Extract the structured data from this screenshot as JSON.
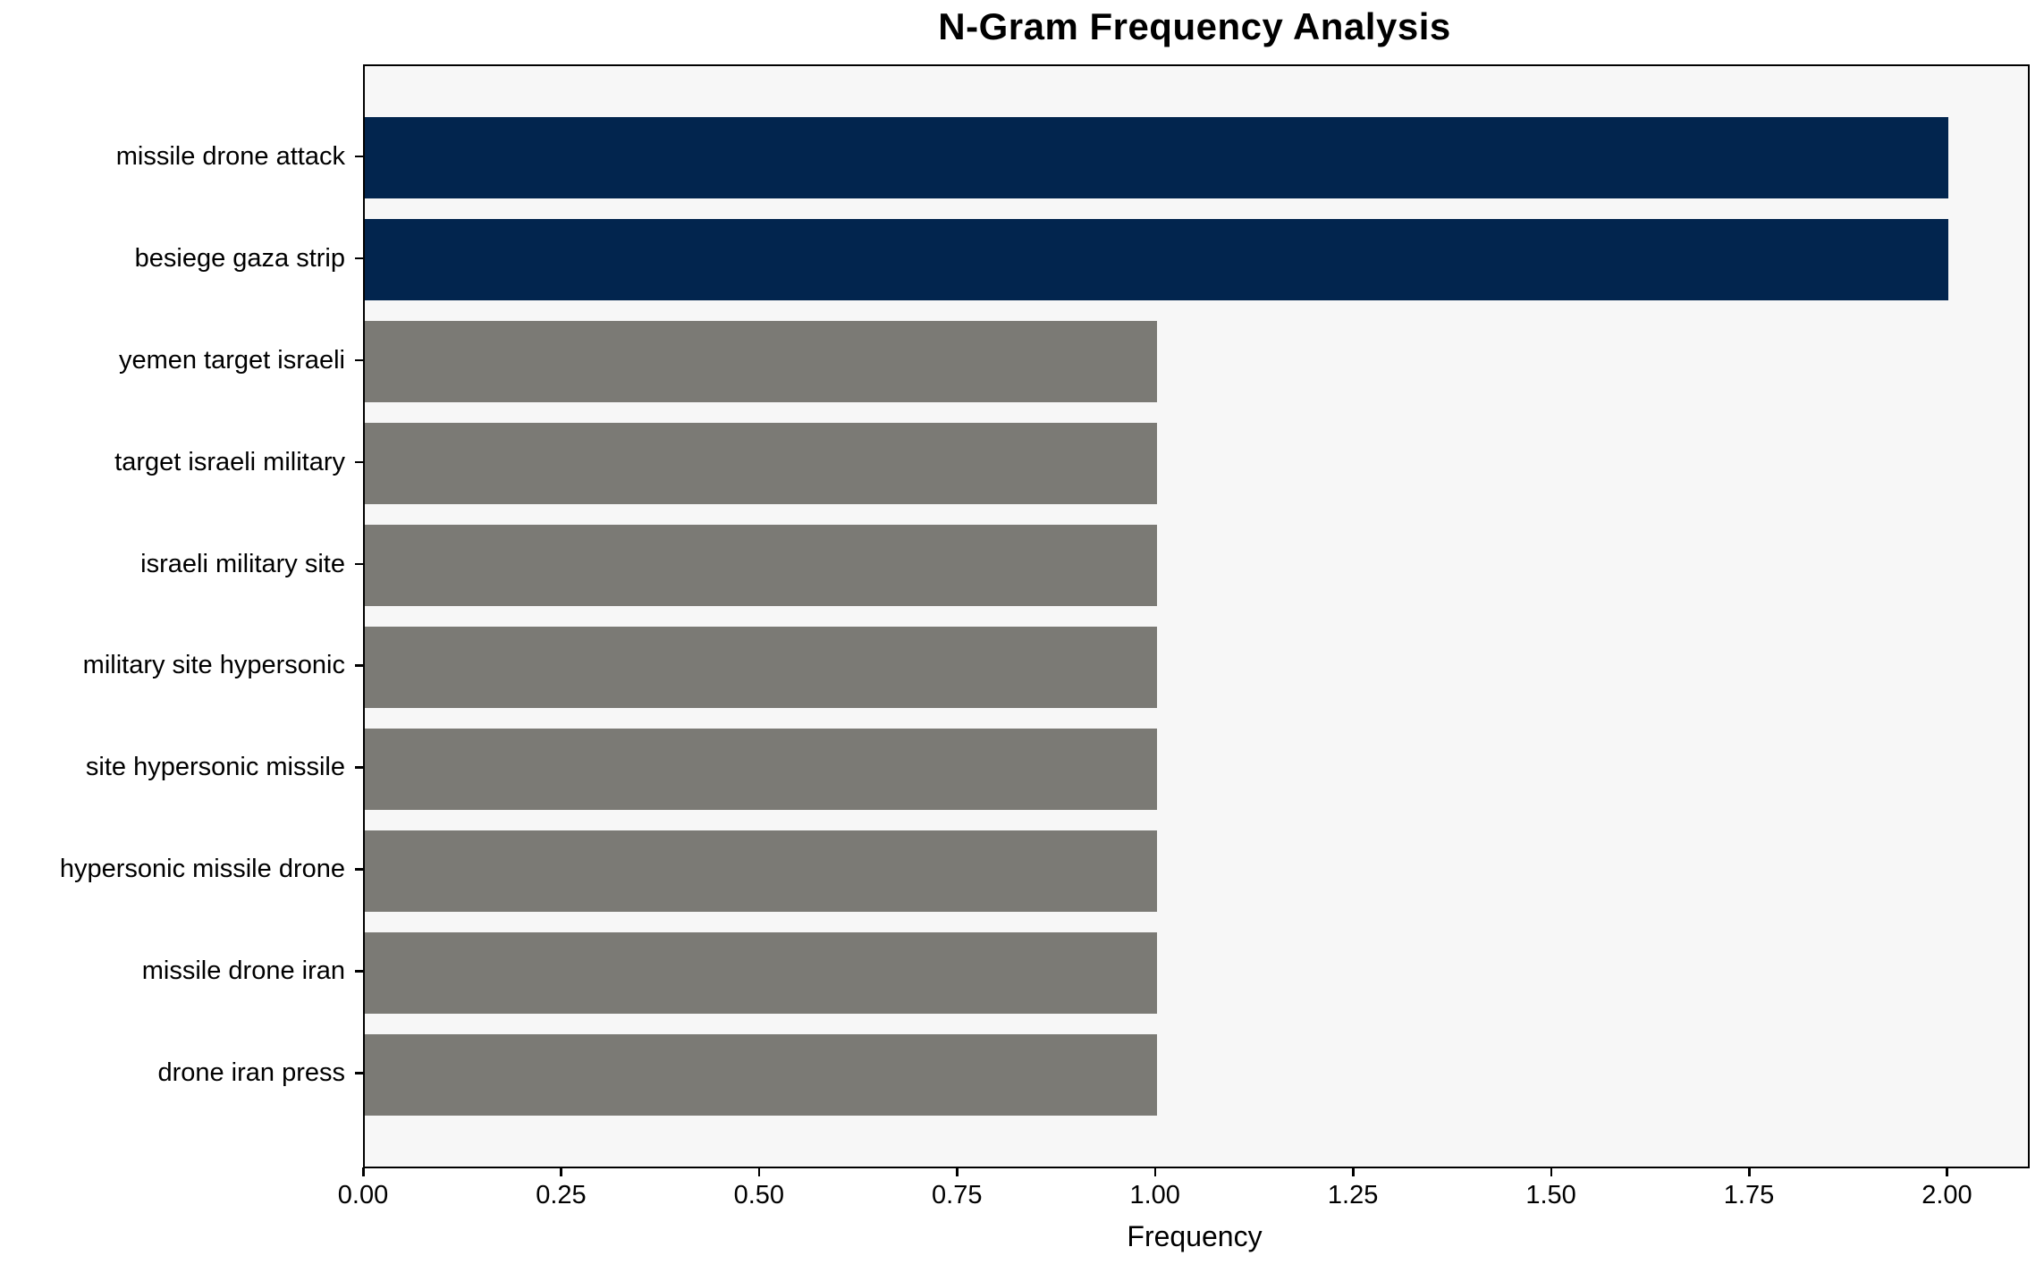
{
  "chart_data": {
    "type": "bar",
    "orientation": "horizontal",
    "title": "N-Gram Frequency Analysis",
    "xlabel": "Frequency",
    "ylabel": "",
    "categories": [
      "missile drone attack",
      "besiege gaza strip",
      "yemen target israeli",
      "target israeli military",
      "israeli military site",
      "military site hypersonic",
      "site hypersonic missile",
      "hypersonic missile drone",
      "missile drone iran",
      "drone iran press"
    ],
    "values": [
      2,
      2,
      1,
      1,
      1,
      1,
      1,
      1,
      1,
      1
    ],
    "bar_colors": [
      "#02254e",
      "#02254e",
      "#7b7a75",
      "#7b7a75",
      "#7b7a75",
      "#7b7a75",
      "#7b7a75",
      "#7b7a75",
      "#7b7a75",
      "#7b7a75"
    ],
    "xlim": [
      0,
      2.1
    ],
    "x_ticks": [
      0,
      0.25,
      0.5,
      0.75,
      1.0,
      1.25,
      1.5,
      1.75,
      2.0
    ],
    "x_tick_labels": [
      "0.00",
      "0.25",
      "0.50",
      "0.75",
      "1.00",
      "1.25",
      "1.50",
      "1.75",
      "2.00"
    ],
    "grid": false,
    "legend": "none",
    "colors": {
      "highlight_bar": "#02254e",
      "default_bar": "#7b7a75",
      "plot_background": "#f7f7f7",
      "figure_background": "#ffffff",
      "spine": "#000000",
      "text": "#000000"
    }
  }
}
